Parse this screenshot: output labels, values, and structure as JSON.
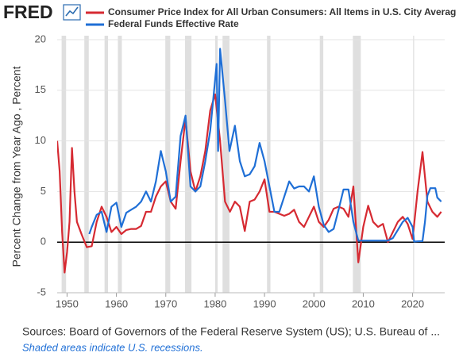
{
  "header": {
    "logo": "FRED"
  },
  "chart_data": {
    "type": "line",
    "y_label": "Percent Change from Year Ago , Percent",
    "source": "Sources: Board of Governors of the Federal Reserve System (US); U.S. Bureau of ...",
    "note": "Shaded areas indicate U.S. recessions.",
    "xlim": [
      1948,
      2026.5
    ],
    "xticks": [
      1950,
      1960,
      1970,
      1980,
      1990,
      2000,
      2010,
      2020
    ],
    "ylim": [
      -5,
      20
    ],
    "yticks": [
      -5,
      0,
      5,
      10,
      15,
      20
    ],
    "grid": true,
    "recessions": [
      [
        1948.9,
        1949.8
      ],
      [
        1953.5,
        1954.4
      ],
      [
        1957.6,
        1958.3
      ],
      [
        1960.3,
        1961.1
      ],
      [
        1969.9,
        1970.9
      ],
      [
        1973.9,
        1975.2
      ],
      [
        1980.0,
        1980.5
      ],
      [
        1981.5,
        1982.9
      ],
      [
        1990.5,
        1991.2
      ],
      [
        2001.2,
        2001.9
      ],
      [
        2007.9,
        2009.5
      ],
      [
        2020.1,
        2020.3
      ]
    ],
    "series": [
      {
        "name": "Consumer Price Index for All Urban Consumers: All Items in U.S. City Averag",
        "color": "#d62a32",
        "x": [
          1948,
          1948.5,
          1949,
          1949.5,
          1950,
          1950.5,
          1951,
          1951.5,
          1952,
          1953,
          1954,
          1955,
          1956,
          1957,
          1958,
          1959,
          1960,
          1961,
          1962,
          1963,
          1964,
          1965,
          1966,
          1967,
          1968,
          1969,
          1970,
          1971,
          1972,
          1973,
          1974,
          1975,
          1976,
          1977,
          1978,
          1979,
          1980,
          1981,
          1982,
          1983,
          1984,
          1985,
          1986,
          1987,
          1988,
          1989,
          1990,
          1991,
          1992,
          1993,
          1994,
          1995,
          1996,
          1997,
          1998,
          1999,
          2000,
          2001,
          2002,
          2003,
          2004,
          2005,
          2006,
          2007,
          2008,
          2009,
          2010,
          2011,
          2012,
          2013,
          2014,
          2015,
          2016,
          2017,
          2018,
          2019,
          2020,
          2021,
          2022,
          2023,
          2024,
          2025,
          2025.8
        ],
        "values": [
          10,
          7,
          1,
          -3,
          -1,
          2,
          9.3,
          5,
          2,
          0.7,
          -0.5,
          -0.4,
          2,
          3.5,
          2.5,
          1,
          1.5,
          0.8,
          1.2,
          1.3,
          1.3,
          1.6,
          3,
          3,
          4.5,
          5.5,
          6,
          4,
          3.3,
          8,
          12.2,
          7,
          5,
          6.5,
          9,
          13,
          14.6,
          10,
          4,
          3,
          4,
          3.5,
          1.1,
          4,
          4.2,
          5,
          6.2,
          3,
          3,
          2.8,
          2.6,
          2.8,
          3.2,
          2,
          1.5,
          2.5,
          3.5,
          2,
          1.5,
          2.2,
          3.3,
          3.5,
          3.3,
          2.5,
          5.5,
          -2,
          1.5,
          3.6,
          2,
          1.5,
          1.8,
          0,
          1,
          2,
          2.5,
          1.8,
          0.3,
          5,
          8.9,
          4,
          3,
          2.5,
          3
        ]
      },
      {
        "name": "Federal Funds Effective Rate",
        "color": "#1f6fd6",
        "x": [
          1954.5,
          1955,
          1956,
          1957,
          1958,
          1959,
          1960,
          1961,
          1962,
          1963,
          1964,
          1965,
          1966,
          1967,
          1968,
          1969,
          1970,
          1971,
          1972,
          1973,
          1974,
          1975,
          1976,
          1977,
          1978,
          1979,
          1980.3,
          1980.6,
          1981,
          1982,
          1982.9,
          1984,
          1985,
          1986,
          1987,
          1988,
          1989,
          1990,
          1991,
          1992,
          1993,
          1994,
          1995,
          1996,
          1997,
          1998,
          1999,
          2000,
          2001,
          2002,
          2003,
          2004,
          2005,
          2006,
          2007,
          2008,
          2009,
          2010,
          2012,
          2015,
          2016,
          2017,
          2018,
          2019,
          2020,
          2020.3,
          2021,
          2022,
          2022.5,
          2023,
          2023.6,
          2024.6,
          2025,
          2025.8
        ],
        "values": [
          0.8,
          1.5,
          2.7,
          3,
          1,
          3.5,
          3.9,
          1.5,
          2.9,
          3.2,
          3.5,
          4,
          5,
          4,
          6,
          9,
          7,
          4,
          4.5,
          10.5,
          12.5,
          5.5,
          5,
          5.5,
          8,
          11,
          17.6,
          9,
          19.1,
          14,
          9,
          11.5,
          8,
          6.5,
          6.7,
          7.5,
          9.8,
          8,
          5.5,
          3,
          3,
          4.5,
          6,
          5.3,
          5.5,
          5.5,
          5,
          6.5,
          3.5,
          1.7,
          1,
          1.3,
          3.2,
          5.2,
          5.2,
          2,
          0.15,
          0.15,
          0.15,
          0.15,
          0.4,
          1.2,
          2,
          2.4,
          1.5,
          0.05,
          0.08,
          0.1,
          2,
          4.6,
          5.33,
          5.33,
          4.4,
          4
        ]
      }
    ]
  }
}
